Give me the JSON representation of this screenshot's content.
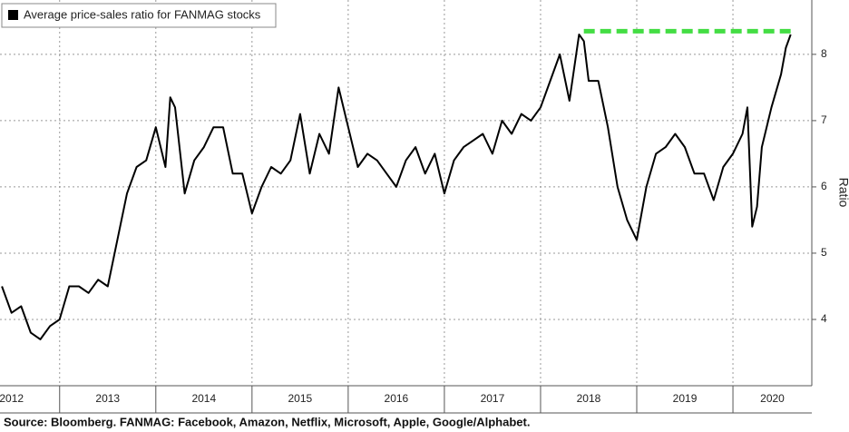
{
  "chart_data": {
    "type": "line",
    "y_label": "Ratio",
    "source": "Source: Bloomberg. FANMAG: Facebook, Amazon, Netflix, Microsoft, Apple, Google/Alphabet.",
    "x": [
      2012.4,
      2012.5,
      2012.6,
      2012.7,
      2012.8,
      2012.9,
      2013.0,
      2013.1,
      2013.2,
      2013.3,
      2013.4,
      2013.5,
      2013.6,
      2013.7,
      2013.8,
      2013.9,
      2014.0,
      2014.1,
      2014.15,
      2014.2,
      2014.3,
      2014.4,
      2014.5,
      2014.6,
      2014.7,
      2014.8,
      2014.9,
      2015.0,
      2015.1,
      2015.2,
      2015.3,
      2015.4,
      2015.5,
      2015.6,
      2015.7,
      2015.8,
      2015.9,
      2016.0,
      2016.1,
      2016.2,
      2016.3,
      2016.4,
      2016.5,
      2016.6,
      2016.7,
      2016.8,
      2016.9,
      2017.0,
      2017.1,
      2017.2,
      2017.3,
      2017.4,
      2017.5,
      2017.6,
      2017.7,
      2017.8,
      2017.9,
      2018.0,
      2018.1,
      2018.2,
      2018.3,
      2018.4,
      2018.45,
      2018.5,
      2018.6,
      2018.7,
      2018.8,
      2018.9,
      2019.0,
      2019.1,
      2019.2,
      2019.3,
      2019.4,
      2019.5,
      2019.6,
      2019.7,
      2019.8,
      2019.9,
      2020.0,
      2020.1,
      2020.15,
      2020.2,
      2020.25,
      2020.3,
      2020.4,
      2020.5,
      2020.55,
      2020.6
    ],
    "series": [
      {
        "name": "Average price-sales ratio for FANMAG stocks",
        "color": "#000000",
        "values": [
          4.5,
          4.1,
          4.2,
          3.8,
          3.7,
          3.9,
          4.0,
          4.5,
          4.5,
          4.4,
          4.6,
          4.5,
          5.2,
          5.9,
          6.3,
          6.4,
          6.9,
          6.3,
          7.35,
          7.2,
          5.9,
          6.4,
          6.6,
          6.9,
          6.9,
          6.2,
          6.2,
          5.6,
          6.0,
          6.3,
          6.2,
          6.4,
          7.1,
          6.2,
          6.8,
          6.5,
          7.5,
          6.9,
          6.3,
          6.5,
          6.4,
          6.2,
          6.0,
          6.4,
          6.6,
          6.2,
          6.5,
          5.9,
          6.4,
          6.6,
          6.7,
          6.8,
          6.5,
          7.0,
          6.8,
          7.1,
          7.0,
          7.2,
          7.6,
          8.0,
          7.3,
          8.3,
          8.2,
          7.6,
          7.6,
          6.9,
          6.0,
          5.5,
          5.2,
          6.0,
          6.5,
          6.6,
          6.8,
          6.6,
          6.2,
          6.2,
          5.8,
          6.3,
          6.5,
          6.8,
          7.2,
          5.4,
          5.7,
          6.6,
          7.2,
          7.7,
          8.1,
          8.3
        ]
      }
    ],
    "reference_line": {
      "value": 8.35,
      "x": [
        2018.45,
        2020.6
      ],
      "color": "#44dd44"
    },
    "xlim": [
      2012.38,
      2020.82
    ],
    "xticks": [
      2013,
      2014,
      2015,
      2016,
      2017,
      2018,
      2019,
      2020
    ],
    "year_labels": [
      "2012",
      "2013",
      "2014",
      "2015",
      "2016",
      "2017",
      "2018",
      "2019",
      "2020"
    ],
    "ylim": [
      3.0,
      8.82
    ],
    "yticks": [
      4,
      5,
      6,
      7,
      8
    ],
    "grid": true,
    "legend": "top-left"
  }
}
